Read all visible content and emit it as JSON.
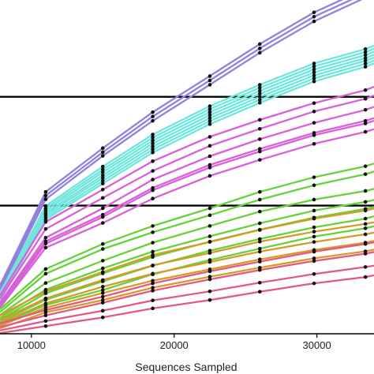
{
  "chart_data": {
    "type": "line",
    "title": "",
    "xlabel": "Sequences Sampled",
    "ylabel": "",
    "xlim": [
      7800,
      34000
    ],
    "ylim": [
      0,
      100
    ],
    "x_ticks": [
      10000,
      20000,
      30000
    ],
    "x_tick_labels": [
      "10000",
      "20000",
      "30000"
    ],
    "x": [
      7800,
      11000,
      15000,
      18500,
      22500,
      26000,
      29800,
      33400,
      34000
    ],
    "reference_lines_y": [
      71,
      38.4
    ],
    "grid": false,
    "legend": "none",
    "series_colors": {
      "purple": "#8f82dc",
      "cyan": "#6fe6dc",
      "magenta": "#d860d8",
      "green": "#66d23a",
      "orange": "#d79a2a",
      "pink": "#e25a82"
    },
    "series": [
      {
        "color": "purple",
        "values": [
          14.5,
          42.5,
          55.6,
          66.4,
          77.2,
          86.8,
          96.3,
          103.3,
          104.8
        ]
      },
      {
        "color": "purple",
        "values": [
          13.6,
          41.4,
          54.4,
          65.1,
          75.9,
          85.5,
          95.0,
          102.0,
          103.4
        ]
      },
      {
        "color": "purple",
        "values": [
          12.8,
          40.3,
          53.3,
          63.8,
          74.6,
          84.2,
          93.6,
          100.7,
          102.1
        ]
      },
      {
        "color": "cyan",
        "values": [
          12.2,
          38.3,
          50.1,
          59.7,
          68.2,
          74.6,
          81.0,
          85.3,
          86.3
        ]
      },
      {
        "color": "cyan",
        "values": [
          11.8,
          37.6,
          49.2,
          58.8,
          67.3,
          73.7,
          80.1,
          84.4,
          85.4
        ]
      },
      {
        "color": "cyan",
        "values": [
          11.4,
          36.9,
          48.4,
          57.9,
          66.4,
          72.8,
          79.2,
          83.5,
          84.5
        ]
      },
      {
        "color": "cyan",
        "values": [
          11.0,
          36.2,
          47.5,
          57.0,
          65.5,
          71.9,
          78.3,
          82.6,
          83.6
        ]
      },
      {
        "color": "cyan",
        "values": [
          10.6,
          35.6,
          46.7,
          56.1,
          64.6,
          71.0,
          77.4,
          81.8,
          82.7
        ]
      },
      {
        "color": "cyan",
        "values": [
          10.2,
          34.9,
          45.8,
          55.2,
          63.7,
          70.1,
          76.5,
          80.9,
          81.8
        ]
      },
      {
        "color": "cyan",
        "values": [
          9.8,
          34.2,
          45.0,
          54.3,
          62.8,
          69.2,
          75.6,
          80.0,
          81.0
        ]
      },
      {
        "color": "magenta",
        "values": [
          11.5,
          33.5,
          43.2,
          51.7,
          59.0,
          64.1,
          69.1,
          73.0,
          74.0
        ]
      },
      {
        "color": "magenta",
        "values": [
          10.5,
          31.4,
          40.7,
          48.8,
          56.3,
          61.4,
          66.6,
          70.4,
          71.4
        ]
      },
      {
        "color": "magenta",
        "values": [
          9.3,
          28.8,
          37.6,
          46.2,
          53.2,
          58.3,
          63.2,
          67.1,
          68.0
        ]
      },
      {
        "color": "magenta",
        "values": [
          8.8,
          27.7,
          35.7,
          43.7,
          50.6,
          55.4,
          60.2,
          63.8,
          64.6
        ]
      },
      {
        "color": "magenta",
        "values": [
          8.3,
          27.0,
          35.0,
          43.0,
          49.8,
          54.6,
          59.5,
          63.0,
          63.8
        ]
      },
      {
        "color": "magenta",
        "values": [
          7.8,
          25.8,
          33.2,
          40.5,
          47.3,
          52.1,
          56.9,
          60.5,
          61.3
        ]
      },
      {
        "color": "green",
        "values": [
          7.3,
          19.4,
          26.9,
          32.3,
          37.6,
          42.5,
          46.9,
          50.2,
          51.0
        ]
      },
      {
        "color": "green",
        "values": [
          6.5,
          18.0,
          25.4,
          30.4,
          35.5,
          40.2,
          44.5,
          47.8,
          48.6
        ]
      },
      {
        "color": "green",
        "values": [
          5.6,
          15.2,
          21.9,
          27.3,
          32.3,
          36.6,
          40.2,
          42.8,
          43.4
        ]
      },
      {
        "color": "green",
        "values": [
          4.8,
          13.2,
          19.6,
          24.6,
          29.2,
          33.1,
          36.9,
          39.5,
          40.1
        ]
      },
      {
        "color": "green",
        "values": [
          4.2,
          12.1,
          18.1,
          23.0,
          27.6,
          31.2,
          34.8,
          37.4,
          38.0
        ]
      },
      {
        "color": "green",
        "values": [
          3.5,
          10.2,
          15.7,
          20.4,
          24.9,
          28.4,
          31.9,
          34.5,
          35.2
        ]
      },
      {
        "color": "green",
        "values": [
          2.8,
          8.6,
          13.1,
          17.8,
          22.1,
          25.5,
          29.1,
          31.6,
          32.2
        ]
      },
      {
        "color": "orange",
        "values": [
          5.5,
          12.7,
          18.5,
          23.6,
          27.5,
          31.1,
          34.5,
          36.9,
          37.5
        ]
      },
      {
        "color": "orange",
        "values": [
          4.1,
          10.6,
          16.1,
          20.5,
          24.2,
          27.6,
          30.6,
          32.9,
          33.4
        ]
      },
      {
        "color": "orange",
        "values": [
          3.2,
          9.1,
          14.1,
          18.0,
          21.5,
          24.6,
          27.5,
          29.8,
          30.3
        ]
      },
      {
        "color": "orange",
        "values": [
          2.4,
          7.8,
          12.2,
          15.9,
          19.3,
          22.3,
          25.1,
          27.3,
          27.8
        ]
      },
      {
        "color": "orange",
        "values": [
          1.6,
          6.4,
          10.1,
          13.8,
          17.1,
          19.8,
          22.6,
          24.7,
          25.2
        ]
      },
      {
        "color": "pink",
        "values": [
          3.1,
          7.1,
          11.1,
          15.1,
          18.7,
          21.6,
          24.6,
          26.9,
          27.4
        ]
      },
      {
        "color": "pink",
        "values": [
          2.0,
          5.5,
          9.3,
          12.9,
          16.3,
          19.1,
          21.8,
          24.0,
          24.5
        ]
      },
      {
        "color": "pink",
        "values": [
          1.0,
          3.8,
          6.9,
          10.0,
          12.7,
          15.3,
          17.9,
          20.0,
          20.4
        ]
      },
      {
        "color": "pink",
        "values": [
          0.2,
          2.3,
          4.9,
          7.6,
          10.1,
          12.6,
          15.1,
          17.0,
          17.5
        ]
      }
    ]
  }
}
